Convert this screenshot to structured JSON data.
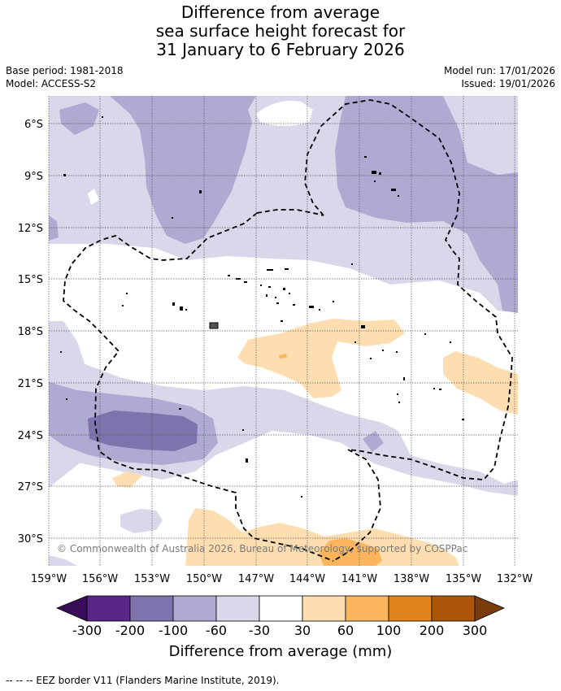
{
  "title": {
    "line1": "Difference from average",
    "line2": "sea surface height forecast for",
    "line3": "31 January to 6 February 2026"
  },
  "meta": {
    "base_period": "Base period: 1981-2018",
    "model": "Model: ACCESS-S2",
    "model_run": "Model run: 17/01/2026",
    "issued": "Issued: 19/01/2026"
  },
  "copyright": "© Commonwealth of Australia 2026, Bureau of Meteorology, supported by COSPPac",
  "lat_labels": [
    "6°S",
    "9°S",
    "12°S",
    "15°S",
    "18°S",
    "21°S",
    "24°S",
    "27°S",
    "30°S"
  ],
  "lon_labels": [
    "159°W",
    "156°W",
    "153°W",
    "150°W",
    "147°W",
    "144°W",
    "141°W",
    "138°W",
    "135°W",
    "132°W"
  ],
  "colorbar": {
    "title": "Difference from average (mm)",
    "ticks": [
      "-300",
      "-200",
      "-100",
      "-60",
      "-30",
      "30",
      "60",
      "100",
      "200",
      "300"
    ],
    "colors": {
      "below": "#3a0d5a",
      "c1": "#5a2687",
      "c2": "#7f73ad",
      "c3": "#aeaad2",
      "c4": "#d8d8ea",
      "neutral": "#ffffff",
      "w1": "#fedeb0",
      "w2": "#fbb65d",
      "w3": "#e2831b",
      "w4": "#ad560a",
      "above": "#7a3d0a"
    }
  },
  "legend_footer": "--  --  -- EEZ border V11 (Flanders Marine Institute, 2019)."
}
